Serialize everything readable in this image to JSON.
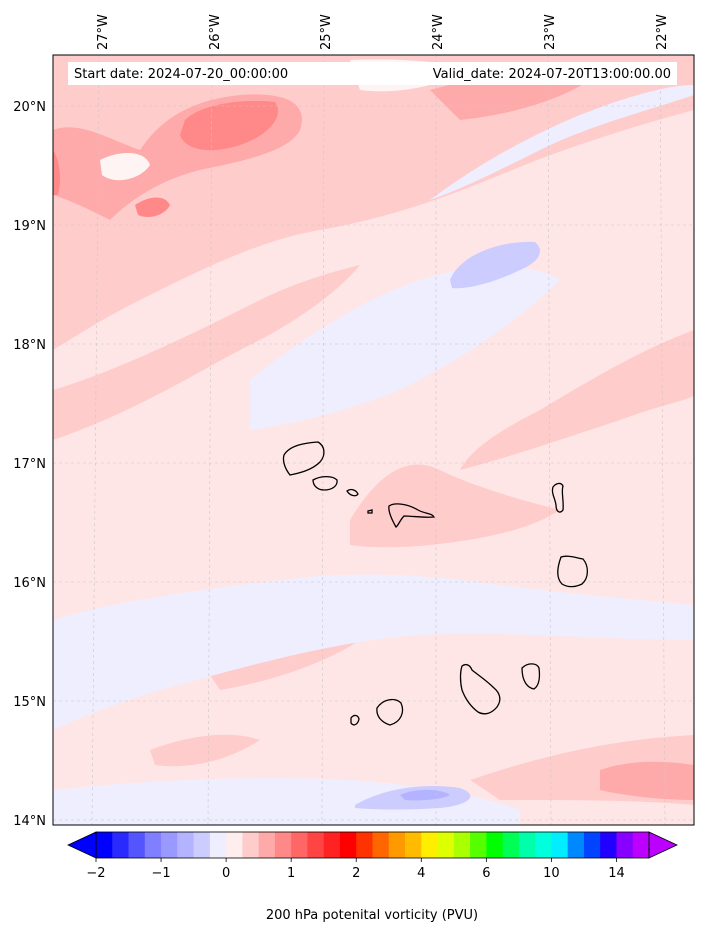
{
  "header": {
    "start_text": "Start date: 2024-07-20_00:00:00",
    "valid_text": "Valid_date: 2024-07-20T13:00:00.00"
  },
  "map": {
    "lon_ticks": [
      "27°W",
      "26°W",
      "25°W",
      "24°W",
      "23°W",
      "22°W"
    ],
    "lat_ticks": [
      "20°N",
      "19°N",
      "18°N",
      "17°N",
      "16°N",
      "15°N",
      "14°N"
    ],
    "background_color": "#ffe6e6",
    "gridline_color": "#c8c8c8",
    "coastline_color": "#000000",
    "islands": [
      "santo-antao",
      "sao-vicente",
      "santa-luzia",
      "raso",
      "sao-nicolau",
      "sal",
      "boa-vista",
      "maio",
      "santiago",
      "fogo",
      "brava"
    ]
  },
  "colorbar": {
    "label": "200 hPa potenital vorticity (PVU)",
    "tick_labels": [
      "−2",
      "−1",
      "0",
      "1",
      "2",
      "4",
      "6",
      "10",
      "14"
    ],
    "colors": [
      "#0000ff",
      "#2a2aff",
      "#5555ff",
      "#7f7fff",
      "#9999ff",
      "#b3b3ff",
      "#ccccff",
      "#eeeeff",
      "#ffeeee",
      "#ffcccc",
      "#ffaaaa",
      "#ff8888",
      "#ff6666",
      "#ff4444",
      "#ff2222",
      "#ff0000",
      "#ff3300",
      "#ff6600",
      "#ff9900",
      "#ffbb00",
      "#ffee00",
      "#ddff00",
      "#aaff00",
      "#55ff00",
      "#00ff00",
      "#00ff55",
      "#00ffaa",
      "#00ffdd",
      "#00eeff",
      "#0088ff",
      "#0044ff",
      "#2200ff",
      "#8800ff",
      "#bb00ff"
    ]
  }
}
